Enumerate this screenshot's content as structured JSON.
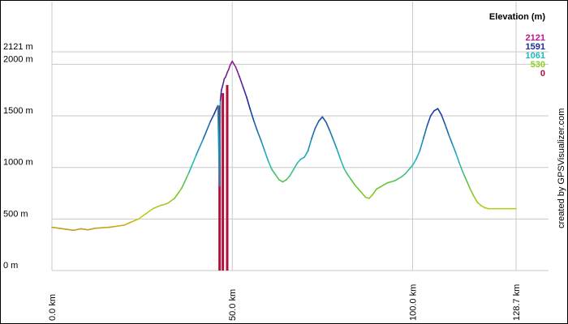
{
  "chart_data": {
    "type": "line",
    "legend_title": "Elevation (m)",
    "legend": [
      {
        "label": "2121",
        "color": "#c0158d"
      },
      {
        "label": "1591",
        "color": "#1a2c9c"
      },
      {
        "label": "1061",
        "color": "#1fb8c2"
      },
      {
        "label": "530",
        "color": "#8fce1c"
      },
      {
        "label": "0",
        "color": "#b0103c"
      }
    ],
    "legend_placement": "top-right",
    "credit": "created by GPSVisualizer.com",
    "y_ticks": [
      {
        "value": 0,
        "label": "0 m"
      },
      {
        "value": 500,
        "label": "500 m"
      },
      {
        "value": 1000,
        "label": "1000 m"
      },
      {
        "value": 1500,
        "label": "1500 m"
      },
      {
        "value": 2000,
        "label": "2000 m"
      },
      {
        "value": 2121,
        "label": "2121 m"
      }
    ],
    "x_ticks": [
      {
        "value": 0,
        "label": "0.0 km"
      },
      {
        "value": 50,
        "label": "50.0 km"
      },
      {
        "value": 100,
        "label": "100.0 km"
      },
      {
        "value": 128.7,
        "label": "128.7 km"
      }
    ],
    "xlim": [
      0,
      128.7
    ],
    "ylim": [
      0,
      2121
    ],
    "grid": true,
    "series": [
      {
        "x": [
          0,
          2,
          4,
          6,
          8,
          10,
          12,
          14,
          16,
          18,
          20,
          22,
          24,
          26,
          28,
          30,
          32,
          34,
          36,
          38,
          40,
          42,
          44,
          45,
          46,
          46.5,
          46.7,
          47,
          47.4,
          47.8,
          48.2,
          48.6,
          49,
          49.4,
          50,
          50.5,
          51,
          52,
          53,
          54,
          55,
          56,
          57,
          58,
          59,
          60,
          61,
          62,
          63,
          64,
          65,
          66,
          67,
          68,
          69,
          70,
          71,
          72,
          73,
          74,
          75,
          76,
          77,
          78,
          79,
          80,
          81,
          82,
          83,
          84,
          85,
          86,
          87,
          88,
          89,
          90,
          91,
          92,
          93,
          94,
          95,
          96,
          97,
          98,
          99,
          100,
          101,
          102,
          103,
          104,
          105,
          106,
          107,
          108,
          109,
          110,
          111,
          112,
          113,
          114,
          115,
          116,
          117,
          118,
          119,
          120,
          121,
          122,
          123,
          124,
          125,
          126,
          127,
          128,
          128.7
        ],
        "y": [
          420,
          410,
          400,
          390,
          405,
          395,
          410,
          415,
          420,
          430,
          440,
          470,
          500,
          550,
          600,
          630,
          650,
          700,
          800,
          950,
          1120,
          1280,
          1450,
          1520,
          1600,
          820,
          1650,
          1750,
          1800,
          1860,
          1880,
          1920,
          1950,
          1990,
          2030,
          2000,
          1970,
          1880,
          1780,
          1680,
          1560,
          1450,
          1350,
          1260,
          1160,
          1060,
          980,
          930,
          880,
          860,
          880,
          920,
          980,
          1040,
          1080,
          1100,
          1160,
          1280,
          1380,
          1450,
          1490,
          1440,
          1360,
          1270,
          1180,
          1080,
          990,
          930,
          880,
          830,
          790,
          750,
          710,
          700,
          740,
          790,
          810,
          830,
          850,
          860,
          870,
          890,
          910,
          940,
          980,
          1020,
          1080,
          1160,
          1280,
          1400,
          1500,
          1550,
          1570,
          1510,
          1420,
          1320,
          1230,
          1140,
          1040,
          950,
          870,
          790,
          720,
          660,
          630,
          610,
          600,
          600,
          600,
          600,
          600,
          600,
          600,
          600,
          600
        ]
      }
    ],
    "spikes": [
      {
        "x": 46.5,
        "y": 1600
      },
      {
        "x": 47.4,
        "y": 1720
      },
      {
        "x": 48.6,
        "y": 1800
      }
    ]
  }
}
